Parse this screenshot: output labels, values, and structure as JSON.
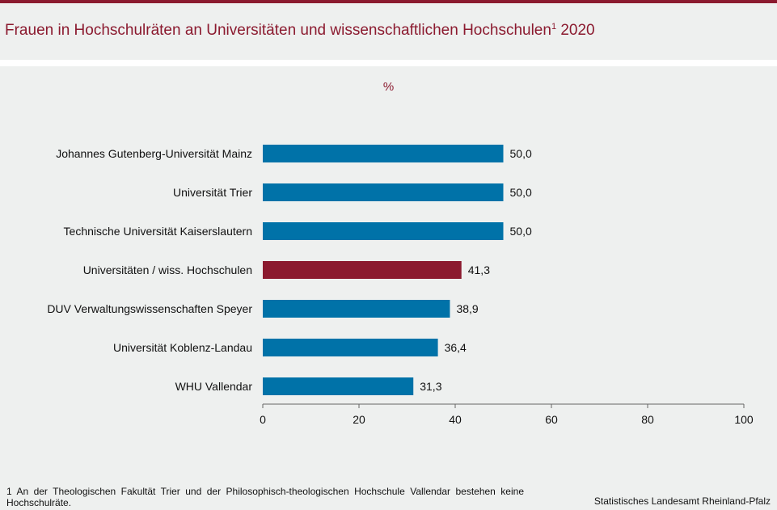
{
  "header": {
    "title": "Frauen in Hochschulräten an Universitäten und wissenschaftlichen Hochschulen",
    "title_footnote_mark": "1",
    "title_year": "2020"
  },
  "chart_data": {
    "type": "bar",
    "orientation": "horizontal",
    "unit_label": "%",
    "categories": [
      "Johannes Gutenberg-Universität Mainz",
      "Universität Trier",
      "Technische Universität Kaiserslautern",
      "Universitäten / wiss. Hochschulen",
      "DUV Verwaltungswissenschaften Speyer",
      "Universität Koblenz-Landau",
      "WHU Vallendar"
    ],
    "values": [
      50.0,
      50.0,
      50.0,
      41.3,
      38.9,
      36.4,
      31.3
    ],
    "value_labels": [
      "50,0",
      "50,0",
      "50,0",
      "41,3",
      "38,9",
      "36,4",
      "31,3"
    ],
    "highlight_category": "Universitäten / wiss. Hochschulen",
    "xlim": [
      0,
      100
    ],
    "xticks": [
      0,
      20,
      40,
      60,
      80,
      100
    ],
    "grid": false,
    "colors": {
      "bar": "#0072a8",
      "highlight": "#8b1a2f",
      "title": "#8b1a2f"
    }
  },
  "footnote": "1 An der Theologischen Fakultät Trier und der Philosophisch-theologischen Hochschule Vallendar bestehen keine Hochschulräte.",
  "source": "Statistisches Landesamt Rheinland-Pfalz"
}
